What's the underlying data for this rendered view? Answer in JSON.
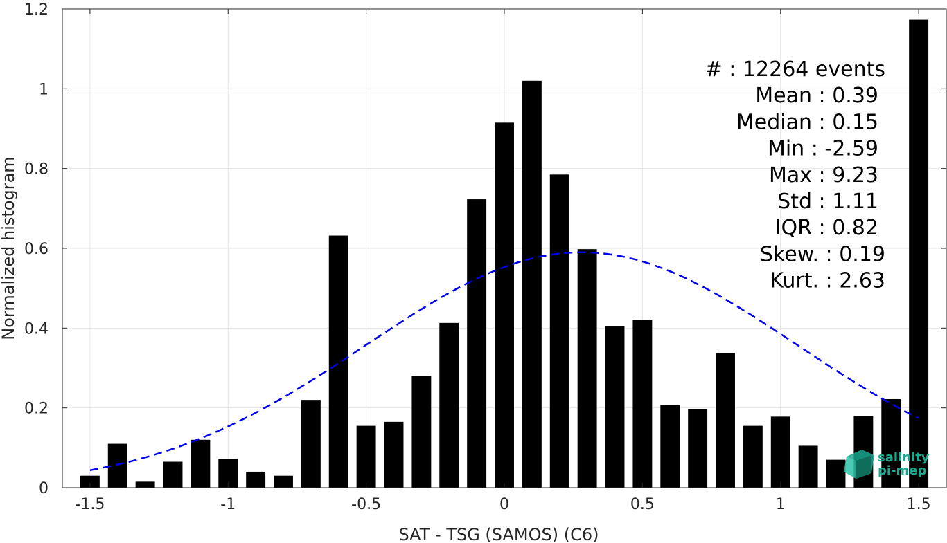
{
  "chart_data": {
    "type": "bar",
    "xlabel": "SAT - TSG (SAMOS) (C6)",
    "ylabel": "Normalized histogram",
    "xlim": [
      -1.6,
      1.6
    ],
    "ylim": [
      0,
      1.2
    ],
    "x_ticks": [
      -1.5,
      -1,
      -0.5,
      0,
      0.5,
      1,
      1.5
    ],
    "x_tick_labels": [
      "-1.5",
      "-1",
      "-0.5",
      "0",
      "0.5",
      "1",
      "1.5"
    ],
    "y_ticks": [
      0,
      0.2,
      0.4,
      0.6,
      0.8,
      1,
      1.2
    ],
    "y_tick_labels": [
      "0",
      "0.2",
      "0.4",
      "0.6",
      "0.8",
      "1",
      "1.2"
    ],
    "grid": true,
    "bar_width": 0.07,
    "x": [
      -1.5,
      -1.4,
      -1.3,
      -1.2,
      -1.1,
      -1.0,
      -0.9,
      -0.8,
      -0.7,
      -0.6,
      -0.5,
      -0.4,
      -0.3,
      -0.2,
      -0.1,
      0.0,
      0.1,
      0.2,
      0.3,
      0.4,
      0.5,
      0.6,
      0.7,
      0.8,
      0.9,
      1.0,
      1.1,
      1.2,
      1.3,
      1.4,
      1.5
    ],
    "values": [
      0.03,
      0.11,
      0.015,
      0.065,
      0.12,
      0.072,
      0.04,
      0.03,
      0.22,
      0.632,
      0.155,
      0.165,
      0.28,
      0.413,
      0.723,
      0.915,
      1.02,
      0.785,
      0.598,
      0.404,
      0.42,
      0.207,
      0.196,
      0.338,
      0.155,
      0.178,
      0.105,
      0.07,
      0.18,
      0.222,
      1.173
    ],
    "bar_color": "#000000",
    "fit_curve": {
      "style": "dashed",
      "color": "#0000ee",
      "mean": 0.28,
      "std": 0.78,
      "peak": 0.59,
      "x_range": [
        -1.5,
        1.5
      ]
    },
    "stats_lines": [
      "#  : 12264 events",
      "Mean : 0.39",
      "Median : 0.15",
      "Min : -2.59",
      "Max : 9.23",
      "Std : 1.11",
      "IQR : 0.82",
      "Skew. : 0.19",
      "Kurt. : 2.63"
    ]
  },
  "logo": {
    "line1": "salinity",
    "line2": "pi-mep",
    "color": "#1aa890"
  }
}
